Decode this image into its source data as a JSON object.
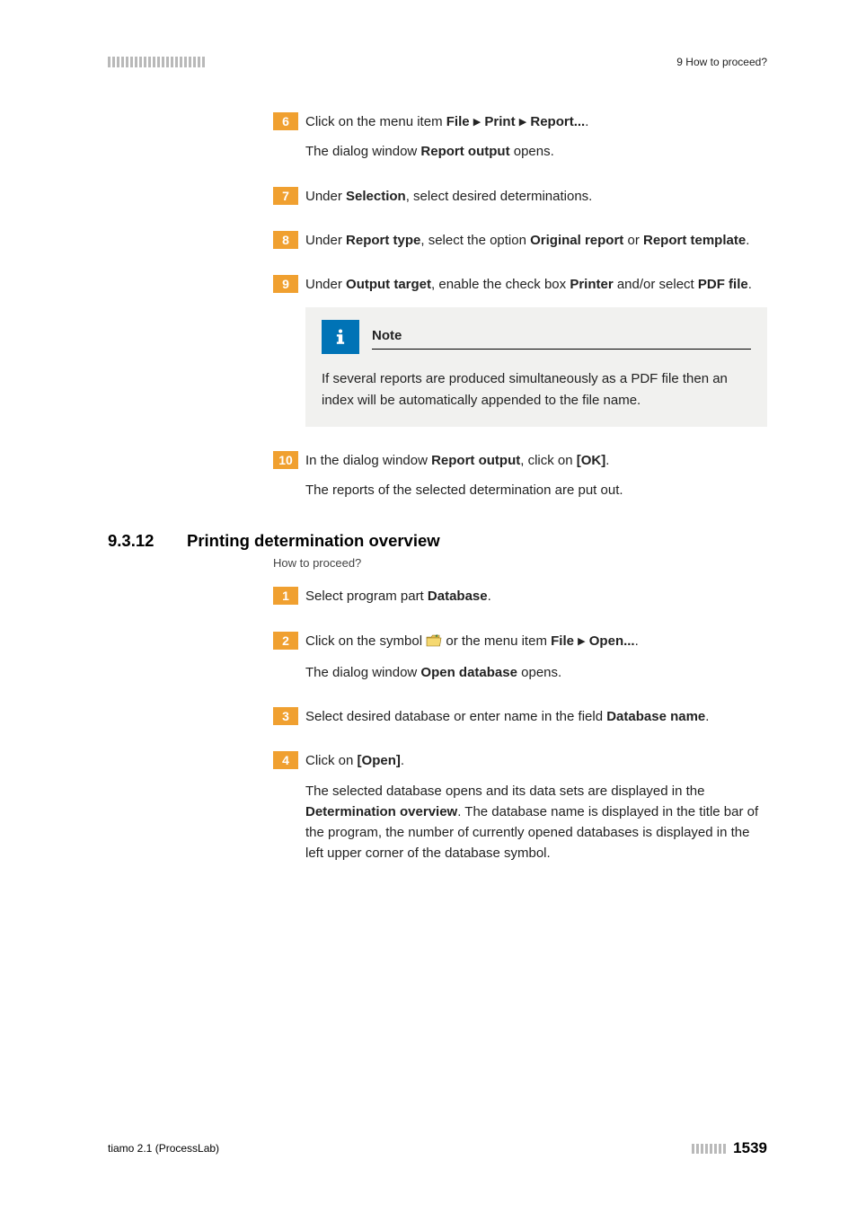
{
  "header": {
    "right": "9 How to proceed?"
  },
  "steps_top": [
    {
      "num": "6",
      "lines": [
        {
          "runs": [
            {
              "t": "Click on the menu item "
            },
            {
              "t": "File",
              "b": true
            },
            {
              "t": " ▸ ",
              "tri": true
            },
            {
              "t": "Print",
              "b": true
            },
            {
              "t": " ▸ ",
              "tri": true
            },
            {
              "t": "Report...",
              "b": true
            },
            {
              "t": "."
            }
          ]
        },
        {
          "runs": [
            {
              "t": "The dialog window "
            },
            {
              "t": "Report output",
              "b": true
            },
            {
              "t": " opens."
            }
          ]
        }
      ]
    },
    {
      "num": "7",
      "lines": [
        {
          "runs": [
            {
              "t": "Under "
            },
            {
              "t": "Selection",
              "b": true
            },
            {
              "t": ", select desired determinations."
            }
          ]
        }
      ]
    },
    {
      "num": "8",
      "lines": [
        {
          "runs": [
            {
              "t": "Under "
            },
            {
              "t": "Report type",
              "b": true
            },
            {
              "t": ", select the option "
            },
            {
              "t": "Original report",
              "b": true
            },
            {
              "t": " or "
            },
            {
              "t": "Report template",
              "b": true
            },
            {
              "t": "."
            }
          ]
        }
      ]
    },
    {
      "num": "9",
      "lines": [
        {
          "runs": [
            {
              "t": "Under "
            },
            {
              "t": "Output target",
              "b": true
            },
            {
              "t": ", enable the check box "
            },
            {
              "t": "Printer",
              "b": true
            },
            {
              "t": " and/or select "
            },
            {
              "t": "PDF file",
              "b": true
            },
            {
              "t": "."
            }
          ]
        }
      ],
      "note": {
        "title": "Note",
        "text": "If several reports are produced simultaneously as a PDF file then an index will be automatically appended to the file name."
      }
    },
    {
      "num": "10",
      "lines": [
        {
          "runs": [
            {
              "t": "In the dialog window "
            },
            {
              "t": "Report output",
              "b": true
            },
            {
              "t": ", click on "
            },
            {
              "t": "[OK]",
              "b": true
            },
            {
              "t": "."
            }
          ]
        },
        {
          "runs": [
            {
              "t": "The reports of the selected determination are put out."
            }
          ]
        }
      ]
    }
  ],
  "section": {
    "num": "9.3.12",
    "title": "Printing determination overview",
    "breadcrumb": "How to proceed?"
  },
  "steps_bottom": [
    {
      "num": "1",
      "lines": [
        {
          "runs": [
            {
              "t": "Select program part "
            },
            {
              "t": "Database",
              "b": true
            },
            {
              "t": "."
            }
          ]
        }
      ]
    },
    {
      "num": "2",
      "lines": [
        {
          "runs": [
            {
              "t": "Click on the symbol "
            },
            {
              "icon": "folder"
            },
            {
              "t": " or the menu item "
            },
            {
              "t": "File",
              "b": true
            },
            {
              "t": " ▸ ",
              "tri": true
            },
            {
              "t": "Open...",
              "b": true
            },
            {
              "t": "."
            }
          ]
        },
        {
          "runs": [
            {
              "t": "The dialog window "
            },
            {
              "t": "Open database",
              "b": true
            },
            {
              "t": " opens."
            }
          ]
        }
      ]
    },
    {
      "num": "3",
      "lines": [
        {
          "runs": [
            {
              "t": "Select desired database or enter name in the field "
            },
            {
              "t": "Database name",
              "b": true
            },
            {
              "t": "."
            }
          ]
        }
      ]
    },
    {
      "num": "4",
      "lines": [
        {
          "runs": [
            {
              "t": "Click on "
            },
            {
              "t": "[Open]",
              "b": true
            },
            {
              "t": "."
            }
          ]
        },
        {
          "runs": [
            {
              "t": "The selected database opens and its data sets are displayed in the "
            },
            {
              "t": "Determination overview",
              "b": true
            },
            {
              "t": ". The database name is displayed in the title bar of the program, the number of currently opened databases is displayed in the left upper corner of the database symbol."
            }
          ]
        }
      ]
    }
  ],
  "footer": {
    "left": "tiamo 2.1 (ProcessLab)",
    "page": "1539"
  },
  "colors": {
    "step_bg": "#f0a030",
    "note_icon_bg": "#0073b6",
    "note_bg": "#f1f1ef",
    "dash": "#b9b9b9"
  }
}
